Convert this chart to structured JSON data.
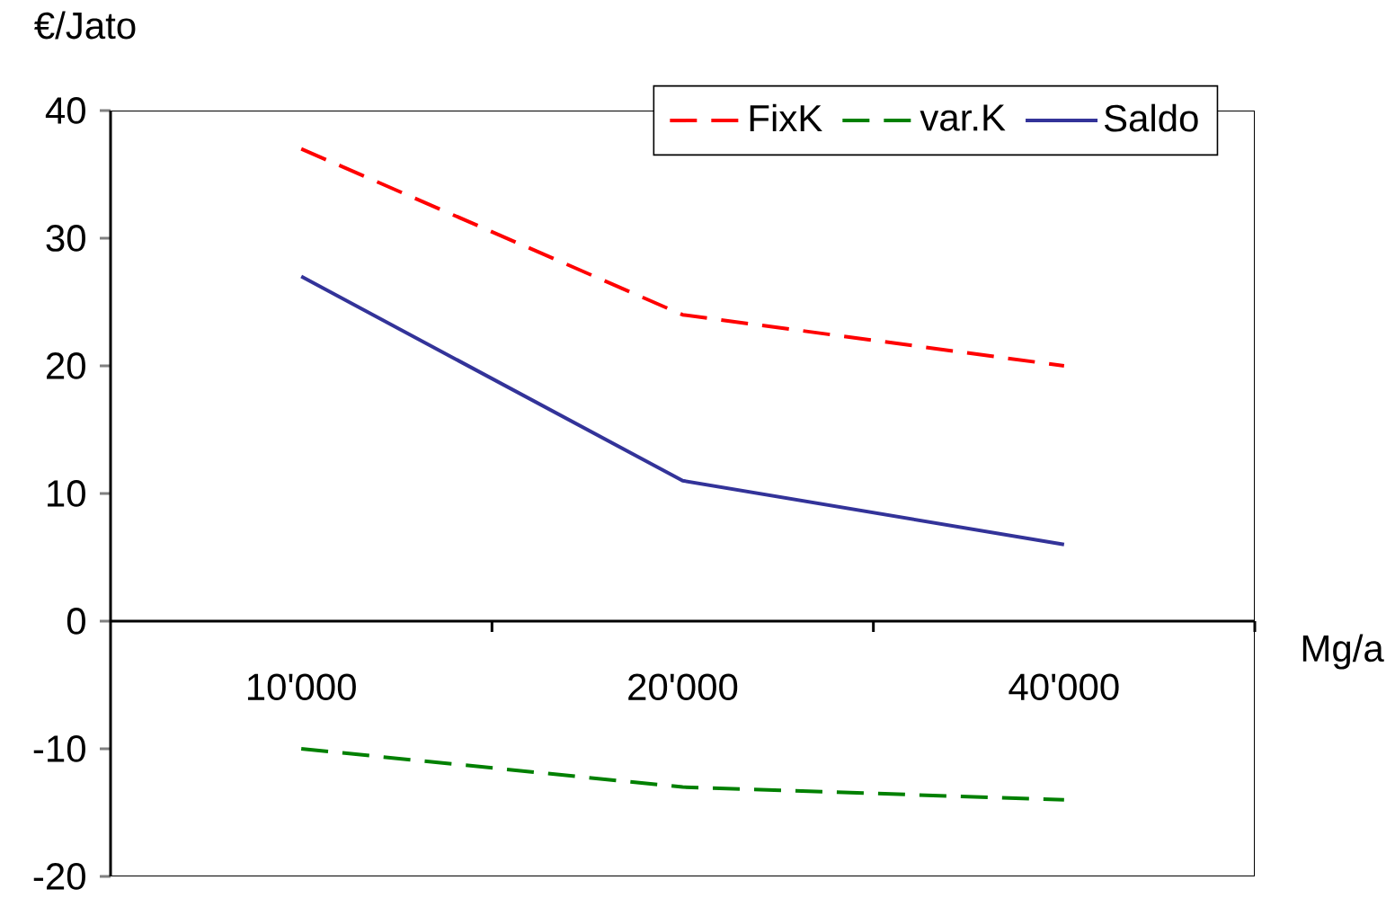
{
  "chart_data": {
    "type": "line",
    "xlabel": "Mg/a",
    "ylabel": "€/Jato",
    "categories": [
      "10'000",
      "20'000",
      "40'000"
    ],
    "ylim": [
      -20,
      40
    ],
    "yticks": [
      -20,
      -10,
      0,
      10,
      20,
      30,
      40
    ],
    "grid": false,
    "legend": "top right",
    "marker": "none",
    "series": [
      {
        "name": "FixK",
        "color": "#ff0000",
        "line_style": "dashed",
        "values": [
          37,
          24,
          20
        ]
      },
      {
        "name": "var.K",
        "color": "#008000",
        "line_style": "dashed",
        "values": [
          -10,
          -13,
          -14
        ]
      },
      {
        "name": "Saldo",
        "color": "#333399",
        "line_style": "solid",
        "values": [
          27,
          11,
          6
        ]
      }
    ]
  }
}
